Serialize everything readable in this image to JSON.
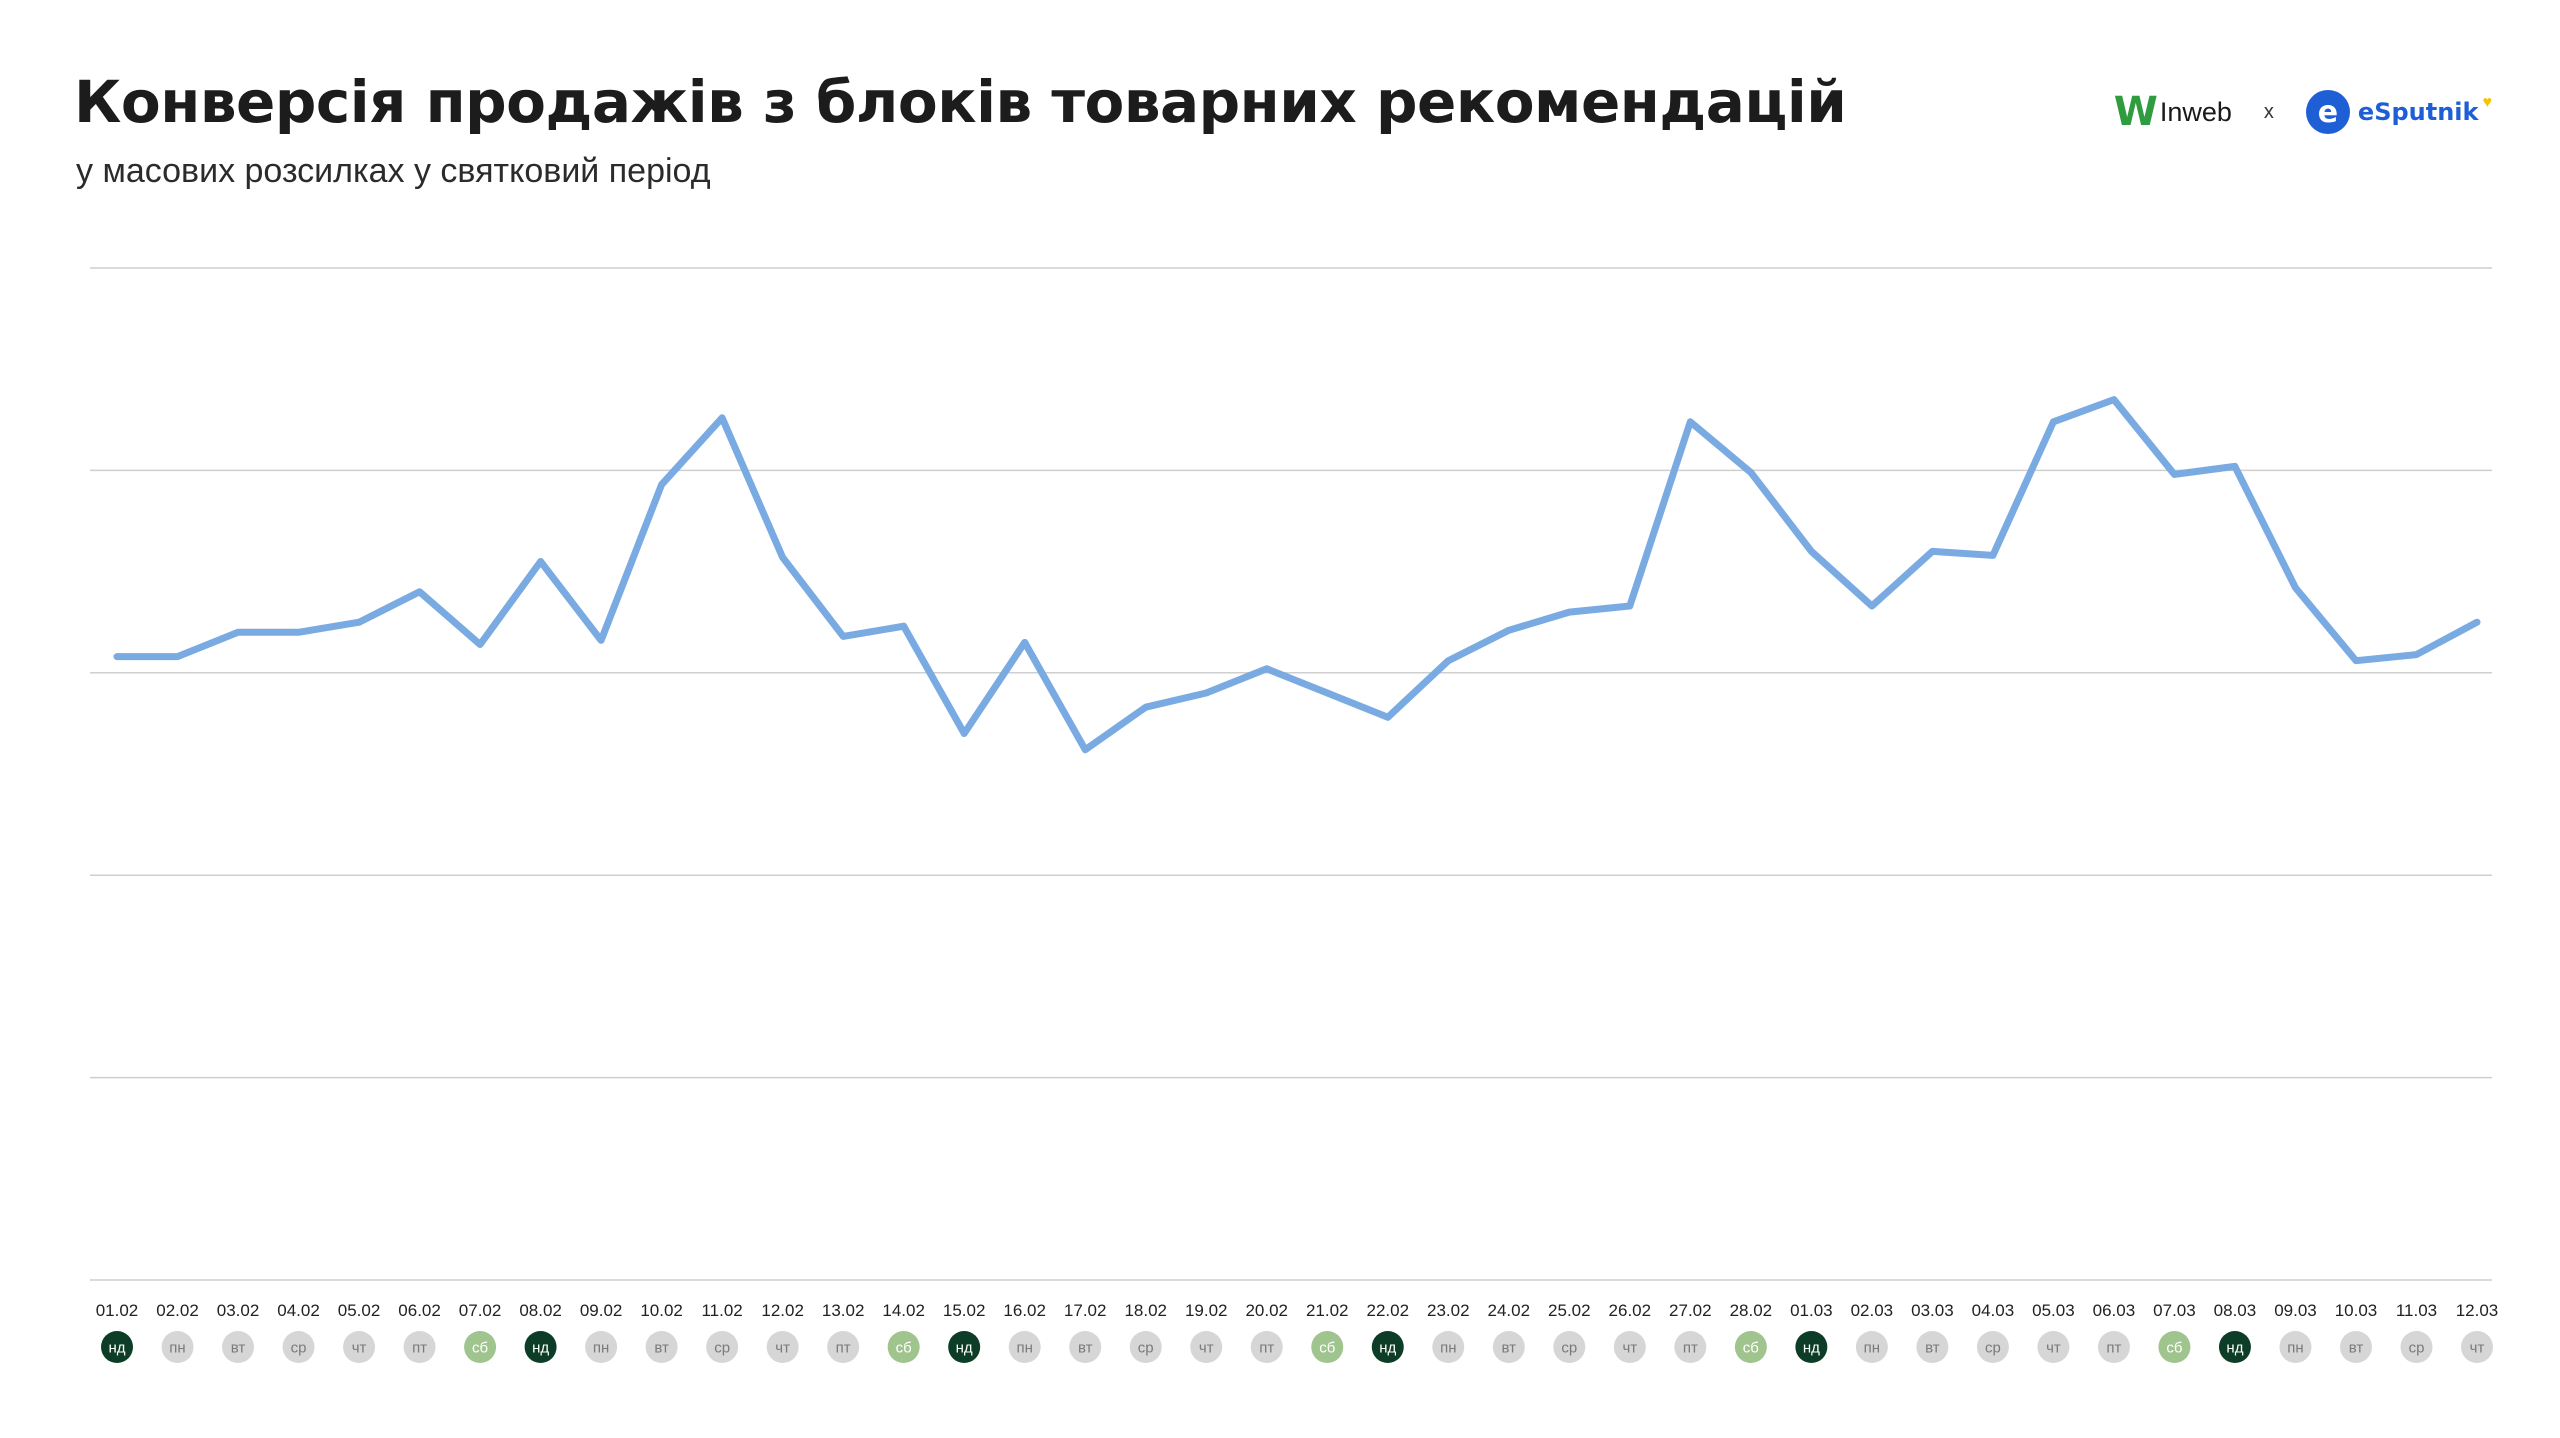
{
  "header": {
    "title": "Конверсія продажів з блоків товарних рекомендацій",
    "subtitle": "у масових розсилках у святковий період"
  },
  "logos": {
    "inweb_mark": "W",
    "inweb_text": "Inweb",
    "separator": "x",
    "esputnik_mark": "e",
    "esputnik_text": "eSputnik",
    "esputnik_icon": "ukraine-heart-icon"
  },
  "colors": {
    "line": "#7aaae2",
    "grid": "#cfcfcf",
    "sunday": "#0d3d26",
    "saturday": "#9fc48e",
    "weekday": "#d6d6d6",
    "weekday_text": "#7a7a7a"
  },
  "chart_data": {
    "type": "line",
    "title": "Конверсія продажів з блоків товарних рекомендацій",
    "subtitle": "у масових розсилках у святковий період",
    "xlabel": "",
    "ylabel": "",
    "grid": true,
    "gridlines": 6,
    "y_tick_labels_shown": false,
    "ylim": [
      0,
      5
    ],
    "categories": [
      "01.02",
      "02.02",
      "03.02",
      "04.02",
      "05.02",
      "06.02",
      "07.02",
      "08.02",
      "09.02",
      "10.02",
      "11.02",
      "12.02",
      "13.02",
      "14.02",
      "15.02",
      "16.02",
      "17.02",
      "18.02",
      "19.02",
      "20.02",
      "21.02",
      "22.02",
      "23.02",
      "24.02",
      "25.02",
      "26.02",
      "27.02",
      "28.02",
      "01.03",
      "02.03",
      "03.03",
      "04.03",
      "05.03",
      "06.03",
      "07.03",
      "08.03",
      "09.03",
      "10.03",
      "11.03",
      "12.03"
    ],
    "weekdays": [
      "нд",
      "пн",
      "вт",
      "ср",
      "чт",
      "пт",
      "сб",
      "нд",
      "пн",
      "вт",
      "ср",
      "чт",
      "пт",
      "сб",
      "нд",
      "пн",
      "вт",
      "ср",
      "чт",
      "пт",
      "сб",
      "нд",
      "пн",
      "вт",
      "ср",
      "чт",
      "пт",
      "сб",
      "нд",
      "пн",
      "вт",
      "ср",
      "чт",
      "пт",
      "сб",
      "нд",
      "пн",
      "вт",
      "ср",
      "чт"
    ],
    "series": [
      {
        "name": "",
        "values": [
          3.08,
          3.08,
          3.2,
          3.2,
          3.25,
          3.4,
          3.14,
          3.55,
          3.16,
          3.93,
          4.26,
          3.57,
          3.18,
          3.23,
          2.7,
          3.15,
          2.62,
          2.83,
          2.9,
          3.02,
          2.9,
          2.78,
          3.06,
          3.21,
          3.3,
          3.33,
          4.24,
          3.99,
          3.6,
          3.33,
          3.6,
          3.58,
          4.24,
          4.35,
          3.98,
          4.02,
          3.42,
          3.06,
          3.09,
          3.25
        ]
      }
    ]
  }
}
